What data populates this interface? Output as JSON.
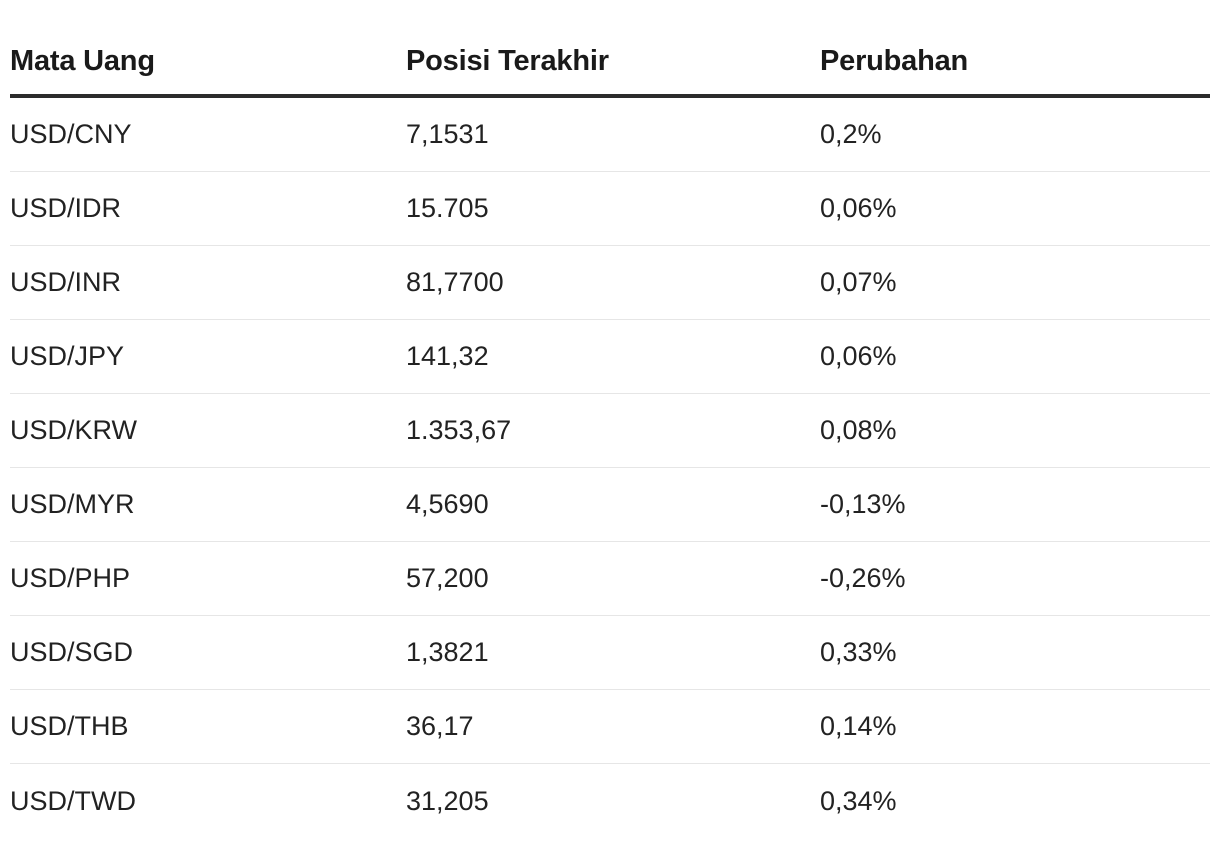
{
  "table": {
    "headers": [
      "Mata Uang",
      "Posisi Terakhir",
      "Perubahan"
    ],
    "rows": [
      {
        "currency": "USD/CNY",
        "last": "7,1531",
        "change": "0,2%"
      },
      {
        "currency": "USD/IDR",
        "last": "15.705",
        "change": "0,06%"
      },
      {
        "currency": "USD/INR",
        "last": "81,7700",
        "change": "0,07%"
      },
      {
        "currency": "USD/JPY",
        "last": "141,32",
        "change": "0,06%"
      },
      {
        "currency": "USD/KRW",
        "last": "1.353,67",
        "change": "0,08%"
      },
      {
        "currency": "USD/MYR",
        "last": "4,5690",
        "change": "-0,13%"
      },
      {
        "currency": "USD/PHP",
        "last": "57,200",
        "change": "-0,26%"
      },
      {
        "currency": "USD/SGD",
        "last": "1,3821",
        "change": "0,33%"
      },
      {
        "currency": "USD/THB",
        "last": "36,17",
        "change": "0,14%"
      },
      {
        "currency": "USD/TWD",
        "last": "31,205",
        "change": "0,34%"
      }
    ]
  }
}
